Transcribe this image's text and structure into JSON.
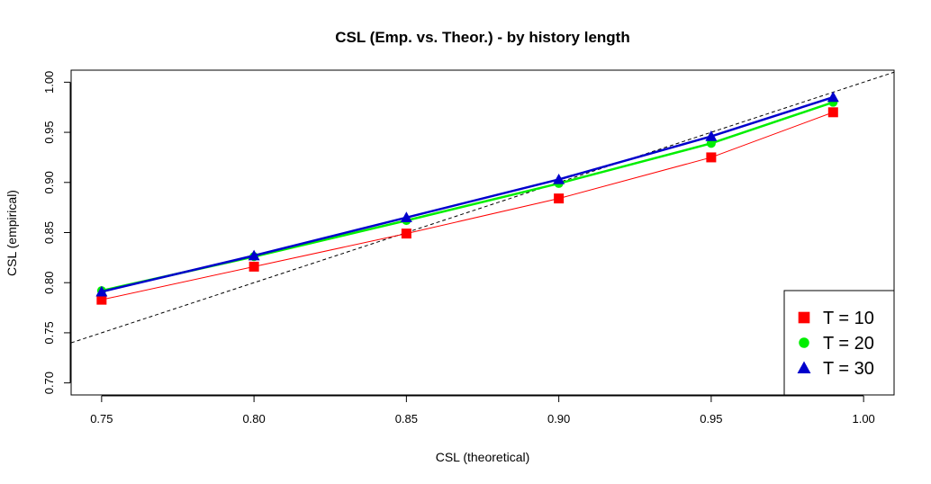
{
  "chart_data": {
    "type": "line",
    "title": "CSL (Emp. vs. Theor.) - by history length",
    "xlabel": "CSL (theoretical)",
    "ylabel": "CSL (empirical)",
    "xlim": [
      0.74,
      1.01
    ],
    "ylim": [
      0.688,
      1.012
    ],
    "x": [
      0.75,
      0.8,
      0.85,
      0.9,
      0.95,
      0.99
    ],
    "x_ticks": [
      "0.75",
      "0.80",
      "0.85",
      "0.90",
      "0.95",
      "1.00"
    ],
    "y_ticks": [
      "0.70",
      "0.75",
      "0.80",
      "0.85",
      "0.90",
      "0.95",
      "1.00"
    ],
    "reference_line": "y = x (dashed)",
    "grid": false,
    "legend_position": "bottom-right",
    "series": [
      {
        "name": "T = 10",
        "color": "#ff0000",
        "marker": "square",
        "line_width": 1,
        "values": [
          0.783,
          0.816,
          0.849,
          0.884,
          0.925,
          0.97
        ]
      },
      {
        "name": "T = 20",
        "color": "#00ee00",
        "marker": "circle",
        "line_width": 2.5,
        "values": [
          0.792,
          0.826,
          0.862,
          0.899,
          0.939,
          0.98
        ]
      },
      {
        "name": "T = 30",
        "color": "#0000cc",
        "marker": "triangle",
        "line_width": 2.5,
        "values": [
          0.791,
          0.827,
          0.865,
          0.903,
          0.946,
          0.985
        ]
      }
    ]
  }
}
